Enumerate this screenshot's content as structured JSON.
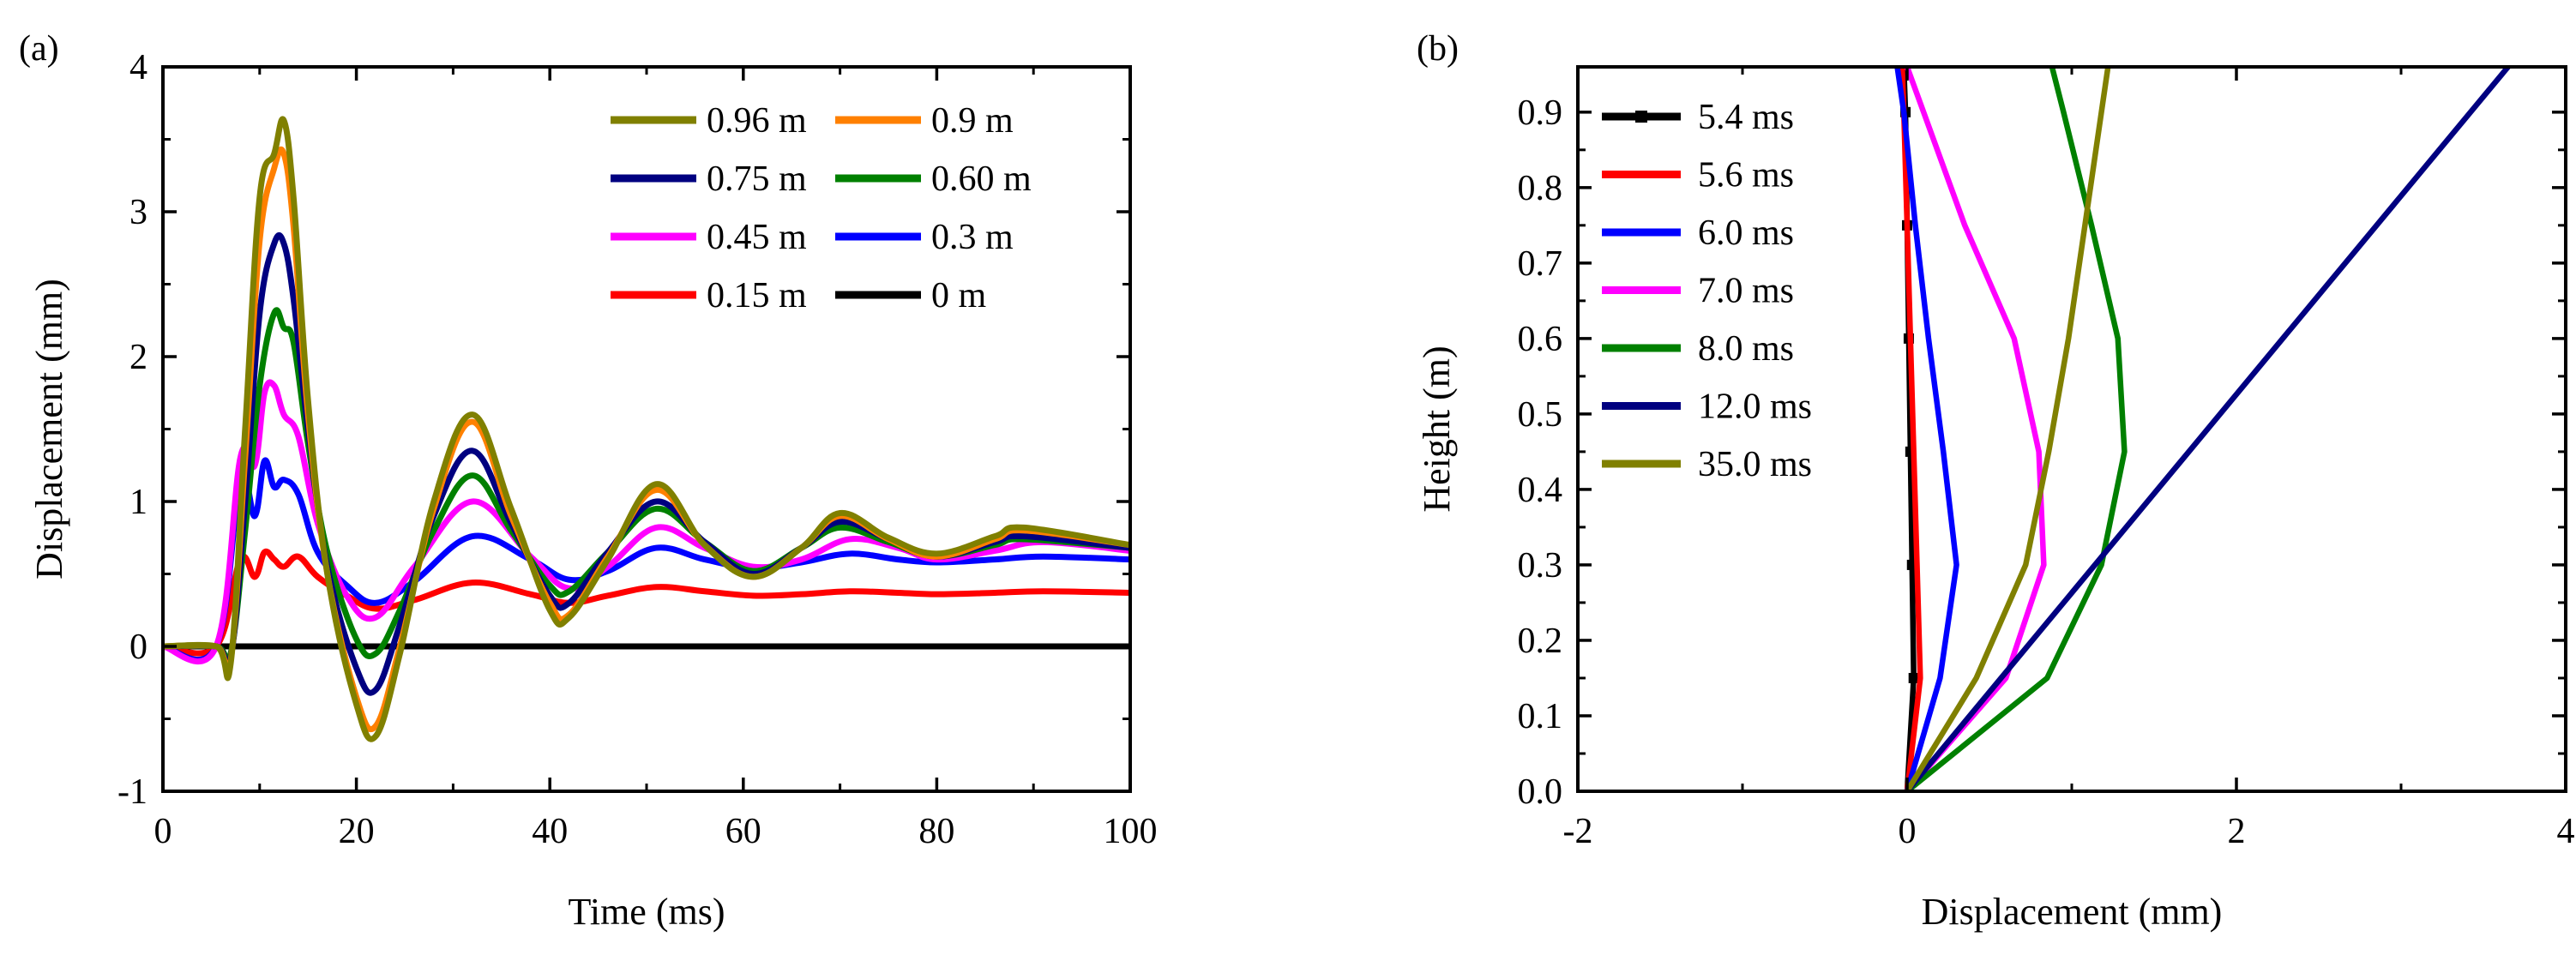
{
  "chart_data": [
    {
      "panel_label": "(a)",
      "type": "line",
      "xlabel": "Time (ms)",
      "ylabel": "Displacement (mm)",
      "xlim": [
        0,
        100
      ],
      "ylim": [
        -1,
        4
      ],
      "xticks": [
        0,
        20,
        40,
        60,
        80,
        100
      ],
      "yticks": [
        -1,
        0,
        1,
        2,
        3,
        4
      ],
      "legend_position": "top-right",
      "series": [
        {
          "name": "0 m",
          "color": "#000000",
          "x": [
            0,
            100
          ],
          "y": [
            0,
            0
          ]
        },
        {
          "name": "0.15 m",
          "color": "#ff0000",
          "x": [
            0,
            5.5,
            8,
            9.5,
            10.5,
            11.5,
            12.5,
            14,
            16,
            19,
            22,
            26,
            32,
            38,
            42,
            46,
            51,
            56,
            61,
            66,
            71,
            76,
            80,
            86,
            91,
            100
          ],
          "y": [
            0,
            0,
            0.6,
            0.48,
            0.65,
            0.6,
            0.55,
            0.62,
            0.48,
            0.35,
            0.26,
            0.32,
            0.44,
            0.36,
            0.3,
            0.35,
            0.41,
            0.38,
            0.35,
            0.36,
            0.38,
            0.37,
            0.36,
            0.37,
            0.38,
            0.37
          ]
        },
        {
          "name": "0.3 m",
          "color": "#0000ff",
          "x": [
            0,
            5.5,
            8,
            9.5,
            10.5,
            11.5,
            12.5,
            14,
            16,
            19,
            22,
            26,
            32,
            38,
            42,
            46,
            51,
            56,
            61,
            66,
            71,
            76,
            80,
            86,
            91,
            100
          ],
          "y": [
            0,
            0,
            1.15,
            0.9,
            1.28,
            1.1,
            1.15,
            1.05,
            0.65,
            0.42,
            0.3,
            0.45,
            0.76,
            0.6,
            0.46,
            0.52,
            0.68,
            0.6,
            0.54,
            0.58,
            0.64,
            0.6,
            0.58,
            0.6,
            0.62,
            0.6
          ]
        },
        {
          "name": "0.45 m",
          "color": "#ff00ff",
          "x": [
            0,
            5.5,
            8,
            9.5,
            10.5,
            11.5,
            12.5,
            14,
            16,
            19,
            22,
            26,
            32,
            38,
            42,
            46,
            51,
            56,
            61,
            66,
            71,
            76,
            80,
            86,
            91,
            100
          ],
          "y": [
            0,
            0,
            1.3,
            1.25,
            1.75,
            1.8,
            1.6,
            1.45,
            0.85,
            0.35,
            0.2,
            0.55,
            1.0,
            0.62,
            0.4,
            0.55,
            0.82,
            0.68,
            0.55,
            0.6,
            0.74,
            0.68,
            0.6,
            0.66,
            0.72,
            0.66
          ]
        },
        {
          "name": "0.60 m",
          "color": "#008000",
          "x": [
            0,
            5.5,
            7,
            8.5,
            10,
            11.5,
            12.5,
            13.5,
            15,
            17,
            20,
            22,
            24.5,
            28,
            32,
            36,
            40,
            42,
            46,
            51,
            56,
            61,
            66,
            70,
            75,
            80,
            86,
            89,
            100
          ],
          "y": [
            0,
            0,
            -0.05,
            0.8,
            1.8,
            2.3,
            2.2,
            2.1,
            1.4,
            0.65,
            0.05,
            -0.05,
            0.25,
            0.8,
            1.18,
            0.8,
            0.42,
            0.38,
            0.65,
            0.95,
            0.72,
            0.52,
            0.68,
            0.82,
            0.72,
            0.62,
            0.7,
            0.74,
            0.68
          ]
        },
        {
          "name": "0.75 m",
          "color": "#000080",
          "x": [
            0,
            5.5,
            7,
            8.5,
            10,
            11.5,
            12.5,
            13.5,
            15,
            17,
            20,
            22,
            24.5,
            28,
            32,
            36,
            40,
            42,
            46,
            51,
            56,
            61,
            66,
            70,
            75,
            80,
            86,
            89,
            100
          ],
          "y": [
            0,
            0,
            -0.08,
            1.0,
            2.3,
            2.78,
            2.78,
            2.4,
            1.5,
            0.55,
            -0.15,
            -0.3,
            0.15,
            0.9,
            1.35,
            0.85,
            0.35,
            0.3,
            0.65,
            1.0,
            0.72,
            0.5,
            0.68,
            0.86,
            0.74,
            0.62,
            0.72,
            0.76,
            0.68
          ]
        },
        {
          "name": "0.9 m",
          "color": "#ff8000",
          "x": [
            0,
            5.5,
            7,
            8.5,
            10,
            11.5,
            12.5,
            13.5,
            15,
            17,
            20,
            22,
            24.5,
            28,
            32,
            36,
            40,
            42,
            46,
            51,
            56,
            61,
            66,
            70,
            75,
            80,
            86,
            89,
            100
          ],
          "y": [
            0,
            0,
            -0.1,
            1.3,
            2.8,
            3.3,
            3.4,
            2.9,
            1.6,
            0.5,
            -0.35,
            -0.55,
            0.0,
            0.95,
            1.55,
            0.9,
            0.3,
            0.22,
            0.62,
            1.08,
            0.7,
            0.48,
            0.68,
            0.9,
            0.74,
            0.62,
            0.74,
            0.8,
            0.7
          ]
        },
        {
          "name": "0.96 m",
          "color": "#808000",
          "x": [
            0,
            5.5,
            7,
            8.5,
            10,
            11.5,
            12.5,
            13.5,
            15,
            17,
            20,
            22,
            24.5,
            28,
            32,
            36,
            40,
            42,
            46,
            51,
            56,
            61,
            66,
            70,
            75,
            80,
            86,
            89,
            100
          ],
          "y": [
            0,
            0,
            -0.12,
            1.5,
            3.1,
            3.4,
            3.63,
            3.1,
            1.7,
            0.5,
            -0.4,
            -0.62,
            -0.05,
            1.0,
            1.6,
            0.95,
            0.25,
            0.2,
            0.6,
            1.12,
            0.7,
            0.48,
            0.68,
            0.92,
            0.75,
            0.64,
            0.76,
            0.82,
            0.7
          ]
        }
      ]
    },
    {
      "panel_label": "(b)",
      "type": "line",
      "xlabel": "Displacement (mm)",
      "ylabel": "Height (m)",
      "xlim": [
        -2,
        4
      ],
      "ylim": [
        0,
        0.96
      ],
      "xticks": [
        -2,
        0,
        2,
        4
      ],
      "yticks": [
        0.0,
        0.1,
        0.2,
        0.3,
        0.4,
        0.5,
        0.6,
        0.7,
        0.8,
        0.9
      ],
      "ytick_labels": [
        "0.0",
        "0.1",
        "0.2",
        "0.3",
        "0.4",
        "0.5",
        "0.6",
        "0.7",
        "0.8",
        "0.9"
      ],
      "legend_position": "top-left",
      "series": [
        {
          "name": "5.4 ms",
          "color": "#000000",
          "marker": "square",
          "x": [
            0,
            0.04,
            0.03,
            0.02,
            0.01,
            0.0,
            -0.01,
            -0.02
          ],
          "y": [
            0,
            0.15,
            0.3,
            0.45,
            0.6,
            0.75,
            0.9,
            0.96
          ]
        },
        {
          "name": "5.6 ms",
          "color": "#ff0000",
          "x": [
            0,
            0.08,
            0.06,
            0.04,
            0.02,
            0.0,
            -0.02,
            -0.03
          ],
          "y": [
            0,
            0.15,
            0.3,
            0.45,
            0.6,
            0.75,
            0.9,
            0.96
          ]
        },
        {
          "name": "6.0 ms",
          "color": "#0000ff",
          "x": [
            0,
            0.2,
            0.3,
            0.22,
            0.13,
            0.05,
            -0.02,
            -0.06
          ],
          "y": [
            0,
            0.15,
            0.3,
            0.45,
            0.6,
            0.75,
            0.9,
            0.96
          ]
        },
        {
          "name": "7.0 ms",
          "color": "#ff00ff",
          "x": [
            0,
            0.6,
            0.83,
            0.8,
            0.65,
            0.35,
            0.1,
            0.0
          ],
          "y": [
            0,
            0.15,
            0.3,
            0.45,
            0.6,
            0.75,
            0.9,
            0.96
          ]
        },
        {
          "name": "8.0 ms",
          "color": "#008000",
          "x": [
            0,
            0.85,
            1.18,
            1.32,
            1.28,
            1.12,
            0.95,
            0.88
          ],
          "y": [
            0,
            0.15,
            0.3,
            0.45,
            0.6,
            0.75,
            0.9,
            0.96
          ]
        },
        {
          "name": "12.0 ms",
          "color": "#000080",
          "x": [
            0,
            3.65
          ],
          "y": [
            0,
            0.96
          ]
        },
        {
          "name": "35.0 ms",
          "color": "#808000",
          "x": [
            0,
            0.42,
            0.72,
            0.86,
            0.98,
            1.08,
            1.18,
            1.22
          ],
          "y": [
            0,
            0.15,
            0.3,
            0.45,
            0.6,
            0.75,
            0.9,
            0.96
          ]
        }
      ]
    }
  ]
}
